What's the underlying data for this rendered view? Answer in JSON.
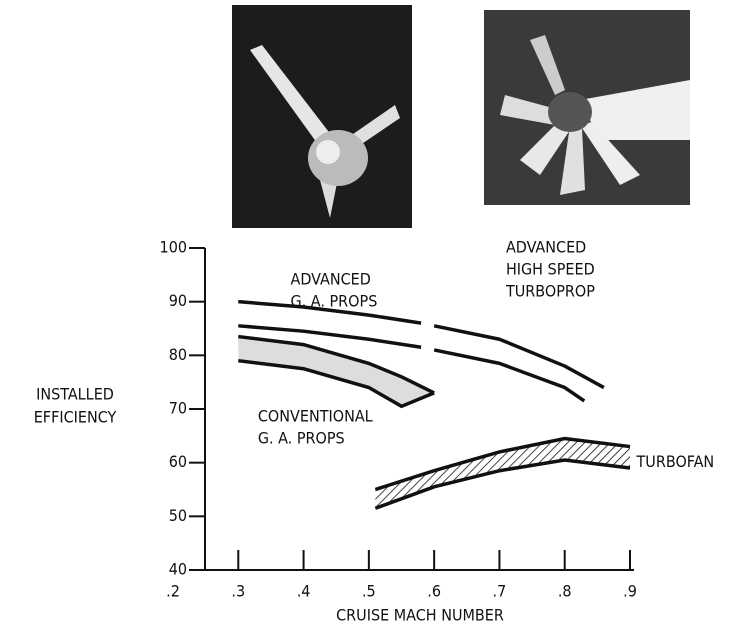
{
  "chart_data": {
    "type": "line",
    "x_label": "CRUISE MACH NUMBER",
    "y_label": [
      "INSTALLED",
      "EFFICIENCY"
    ],
    "xlim": [
      0.2,
      0.9
    ],
    "ylim": [
      40,
      100
    ],
    "xticks": [
      {
        "value": 0.2,
        "label": ".2"
      },
      {
        "value": 0.3,
        "label": ".3"
      },
      {
        "value": 0.4,
        "label": ".4"
      },
      {
        "value": 0.5,
        "label": ".5"
      },
      {
        "value": 0.6,
        "label": ".6"
      },
      {
        "value": 0.7,
        "label": ".7"
      },
      {
        "value": 0.8,
        "label": ".8"
      },
      {
        "value": 0.9,
        "label": ".9"
      }
    ],
    "yticks": [
      40,
      50,
      60,
      70,
      80,
      90,
      100
    ],
    "color": "#111111",
    "series": [
      {
        "x": [
          0.3,
          0.4,
          0.5,
          0.58
        ],
        "values": [
          90,
          89,
          87.5,
          86
        ]
      },
      {
        "x": [
          0.3,
          0.4,
          0.5,
          0.58
        ],
        "values": [
          85.5,
          84.5,
          83,
          81.5
        ]
      },
      {
        "x": [
          0.6,
          0.7,
          0.8,
          0.86
        ],
        "values": [
          85.5,
          83,
          78,
          74
        ]
      },
      {
        "x": [
          0.6,
          0.7,
          0.8,
          0.83
        ],
        "values": [
          81,
          78.5,
          74,
          71.5
        ]
      }
    ],
    "bands": [
      {
        "x": [
          0.3,
          0.4,
          0.5,
          0.55,
          0.6
        ],
        "upper": [
          83.5,
          82,
          78.5,
          76,
          73
        ],
        "lower": [
          79,
          77.5,
          74,
          70.5,
          73
        ],
        "fill": "#dddddd"
      },
      {
        "x": [
          0.51,
          0.6,
          0.7,
          0.8,
          0.9
        ],
        "upper": [
          55,
          58.5,
          62,
          64.5,
          63
        ],
        "lower": [
          51.5,
          55.5,
          58.5,
          60.5,
          59
        ],
        "fill": "hatch"
      }
    ],
    "annotations": [
      {
        "lines": [
          "ADVANCED",
          "G. A. PROPS"
        ],
        "x": 0.38,
        "y": 94
      },
      {
        "lines": [
          "ADVANCED",
          "HIGH SPEED",
          "TURBOPROP"
        ],
        "x": 0.71,
        "y": 100
      },
      {
        "lines": [
          "CONVENTIONAL",
          "G. A. PROPS"
        ],
        "x": 0.33,
        "y": 68.5
      },
      {
        "lines": [
          "TURBOFAN"
        ],
        "x": 0.91,
        "y": 60
      }
    ]
  }
}
